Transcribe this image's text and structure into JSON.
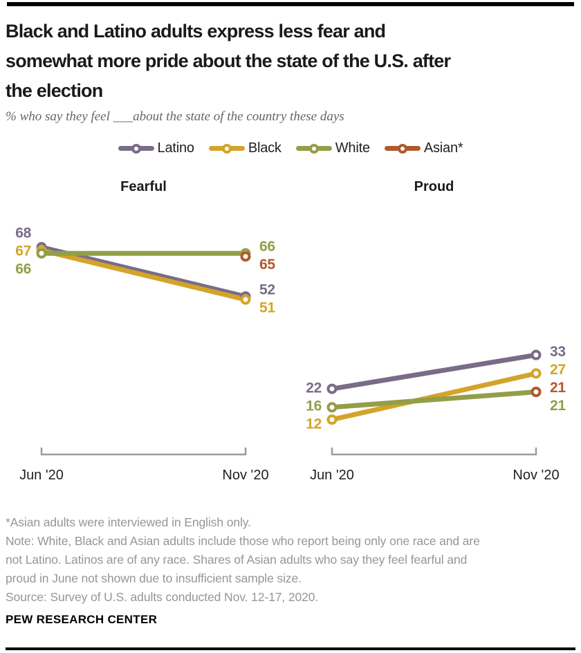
{
  "header": {
    "title_lines": [
      "Black and Latino adults express less fear and",
      "somewhat more pride about the state of the U.S. after",
      "the election"
    ],
    "subtitle": "% who say they feel ___about the state of the country these days"
  },
  "legend": {
    "items": [
      {
        "label": "Latino",
        "color": "#786c88"
      },
      {
        "label": "Black",
        "color": "#d3a429"
      },
      {
        "label": "White",
        "color": "#949d48"
      },
      {
        "label": "Asian*",
        "color": "#b0592b"
      }
    ]
  },
  "chart_data": [
    {
      "type": "line",
      "panel_title": "Fearful",
      "x": [
        "Jun '20",
        "Nov '20"
      ],
      "series": [
        {
          "name": "Latino",
          "color": "#786c88",
          "values": [
            68,
            52
          ]
        },
        {
          "name": "Black",
          "color": "#d3a429",
          "values": [
            67,
            51
          ]
        },
        {
          "name": "White",
          "color": "#949d48",
          "values": [
            66,
            66
          ]
        },
        {
          "name": "Asian*",
          "color": "#b0592b",
          "values": [
            null,
            65
          ]
        }
      ],
      "ylim": [
        0,
        100
      ],
      "grid": false,
      "legend_position": "top",
      "notes": "Asian June value not shown (insufficient sample size)"
    },
    {
      "type": "line",
      "panel_title": "Proud",
      "x": [
        "Jun '20",
        "Nov '20"
      ],
      "series": [
        {
          "name": "Latino",
          "color": "#786c88",
          "values": [
            22,
            33
          ]
        },
        {
          "name": "Black",
          "color": "#d3a429",
          "values": [
            12,
            27
          ]
        },
        {
          "name": "White",
          "color": "#949d48",
          "values": [
            16,
            21
          ]
        },
        {
          "name": "Asian*",
          "color": "#b0592b",
          "values": [
            null,
            21
          ]
        }
      ],
      "ylim": [
        0,
        100
      ],
      "grid": false,
      "legend_position": "top",
      "notes": "Asian June value not shown (insufficient sample size)"
    }
  ],
  "footnotes": {
    "lines": [
      "*Asian adults were interviewed in English only.",
      "Note: White, Black and Asian adults include those who report being only one race and are",
      "not Latino. Latinos are of any race. Shares of Asian adults who say they feel fearful and",
      "proud in June not shown due to insufficient sample size.",
      "Source: Survey of U.S. adults conducted Nov. 12-17, 2020."
    ],
    "brand": "PEW RESEARCH CENTER"
  }
}
